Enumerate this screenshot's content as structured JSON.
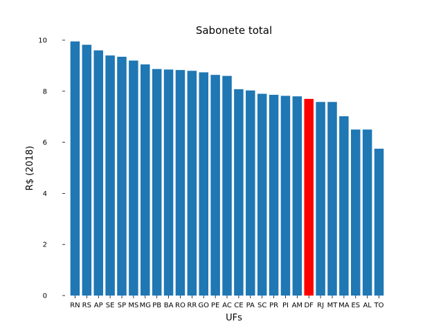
{
  "chart_data": {
    "type": "bar",
    "title": "Sabonete total",
    "xlabel": "UFs",
    "ylabel": "R$ (2018)",
    "ylim": [
      0,
      10
    ],
    "yticks": [
      0,
      2,
      4,
      6,
      8,
      10
    ],
    "grid": false,
    "legend": "none",
    "categories": [
      "RN",
      "RS",
      "AP",
      "SE",
      "SP",
      "MS",
      "MG",
      "PB",
      "BA",
      "RO",
      "RR",
      "GO",
      "PE",
      "AC",
      "CE",
      "PA",
      "SC",
      "PR",
      "PI",
      "AM",
      "DF",
      "RJ",
      "MT",
      "MA",
      "ES",
      "AL",
      "TO"
    ],
    "values": [
      9.95,
      9.82,
      9.6,
      9.4,
      9.35,
      9.2,
      9.05,
      8.87,
      8.85,
      8.83,
      8.8,
      8.74,
      8.64,
      8.6,
      8.08,
      8.03,
      7.9,
      7.86,
      7.82,
      7.8,
      7.7,
      7.58,
      7.58,
      7.02,
      6.5,
      6.5,
      5.75
    ],
    "colors": {
      "default": "#1f77b4",
      "highlight": "#ff0000"
    },
    "highlight_category": "DF"
  }
}
